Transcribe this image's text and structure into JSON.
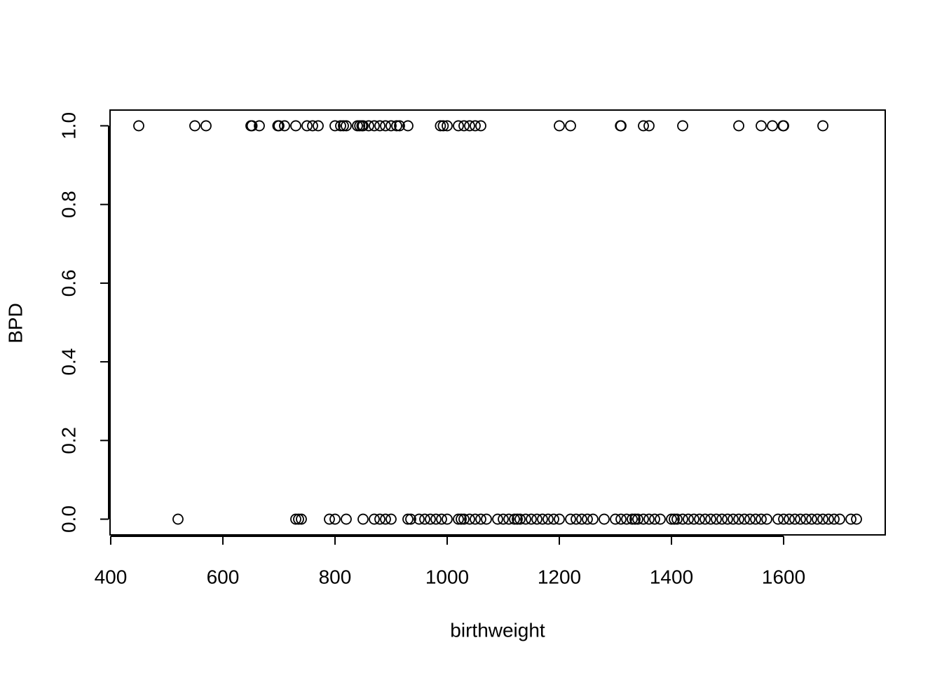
{
  "chart_data": {
    "type": "scatter",
    "xlabel": "birthweight",
    "ylabel": "BPD",
    "x": [
      450,
      550,
      570,
      650,
      652,
      665,
      698,
      700,
      710,
      730,
      750,
      760,
      770,
      800,
      810,
      815,
      820,
      840,
      844,
      848,
      850,
      860,
      870,
      880,
      890,
      900,
      910,
      915,
      930,
      988,
      993,
      1000,
      1020,
      1030,
      1040,
      1050,
      1060,
      1200,
      1220,
      1309,
      1310,
      1350,
      1360,
      1420,
      1520,
      1560,
      1580,
      1599,
      1600,
      1670,
      520,
      730,
      735,
      740,
      790,
      800,
      820,
      850,
      870,
      880,
      890,
      900,
      930,
      935,
      950,
      960,
      970,
      980,
      990,
      1000,
      1020,
      1025,
      1030,
      1040,
      1050,
      1060,
      1070,
      1090,
      1100,
      1110,
      1120,
      1125,
      1130,
      1140,
      1150,
      1160,
      1170,
      1180,
      1190,
      1200,
      1220,
      1230,
      1240,
      1250,
      1260,
      1280,
      1300,
      1310,
      1320,
      1330,
      1335,
      1340,
      1350,
      1360,
      1370,
      1380,
      1400,
      1405,
      1410,
      1420,
      1430,
      1440,
      1450,
      1460,
      1470,
      1480,
      1490,
      1500,
      1510,
      1520,
      1530,
      1540,
      1550,
      1560,
      1570,
      1590,
      1600,
      1610,
      1620,
      1630,
      1640,
      1650,
      1660,
      1670,
      1680,
      1690,
      1700,
      1720,
      1730
    ],
    "values": [
      1,
      1,
      1,
      1,
      1,
      1,
      1,
      1,
      1,
      1,
      1,
      1,
      1,
      1,
      1,
      1,
      1,
      1,
      1,
      1,
      1,
      1,
      1,
      1,
      1,
      1,
      1,
      1,
      1,
      1,
      1,
      1,
      1,
      1,
      1,
      1,
      1,
      1,
      1,
      1,
      1,
      1,
      1,
      1,
      1,
      1,
      1,
      1,
      1,
      1,
      0,
      0,
      0,
      0,
      0,
      0,
      0,
      0,
      0,
      0,
      0,
      0,
      0,
      0,
      0,
      0,
      0,
      0,
      0,
      0,
      0,
      0,
      0,
      0,
      0,
      0,
      0,
      0,
      0,
      0,
      0,
      0,
      0,
      0,
      0,
      0,
      0,
      0,
      0,
      0,
      0,
      0,
      0,
      0,
      0,
      0,
      0,
      0,
      0,
      0,
      0,
      0,
      0,
      0,
      0,
      0,
      0,
      0,
      0,
      0,
      0,
      0,
      0,
      0,
      0,
      0,
      0,
      0,
      0,
      0,
      0,
      0,
      0,
      0,
      0,
      0,
      0,
      0,
      0,
      0,
      0,
      0,
      0,
      0,
      0,
      0,
      0,
      0,
      0
    ],
    "color": "#000000",
    "xlim": [
      398.8,
      1781.2
    ],
    "xticks": [
      400,
      600,
      800,
      1000,
      1200,
      1400,
      1600
    ],
    "ylim": [
      -0.04,
      1.04
    ],
    "yticks": [
      {
        "value": 0,
        "label": "0.0"
      },
      {
        "value": 0.2,
        "label": "0.2"
      },
      {
        "value": 0.4,
        "label": "0.4"
      },
      {
        "value": 0.6,
        "label": "0.6"
      },
      {
        "value": 0.8,
        "label": "0.8"
      },
      {
        "value": 1,
        "label": "1.0"
      }
    ]
  }
}
